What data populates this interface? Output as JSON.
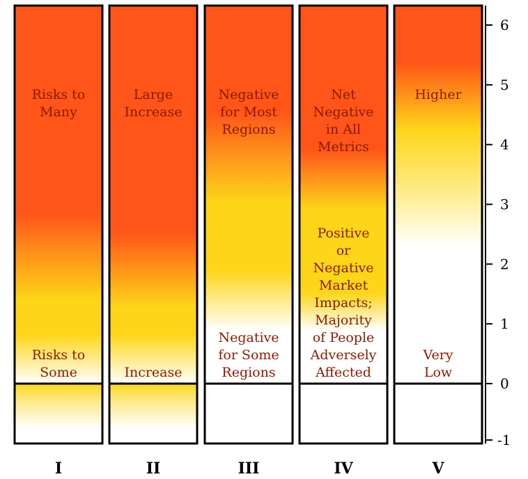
{
  "axis": {
    "min": -1,
    "max": 6,
    "ticks": [
      "6",
      "5",
      "4",
      "3",
      "2",
      "1",
      "0",
      "-1"
    ]
  },
  "columns": [
    {
      "numeral": "I",
      "top_label": [
        "Risks to",
        "Many"
      ],
      "bottom_label": [
        "Risks to",
        "Some"
      ]
    },
    {
      "numeral": "II",
      "top_label": [
        "Large",
        "Increase"
      ],
      "bottom_label": [
        "Increase"
      ]
    },
    {
      "numeral": "III",
      "top_label": [
        "Negative",
        "for Most",
        "Regions"
      ],
      "bottom_label": [
        "Negative",
        "for Some",
        "Regions"
      ]
    },
    {
      "numeral": "IV",
      "top_label": [
        "Net",
        "Negative",
        "in All",
        "Metrics"
      ],
      "bottom_label": [
        "Positive",
        "or",
        "Negative",
        "Market",
        "Impacts;",
        "Majority",
        "of People",
        "Adversely",
        "Affected"
      ]
    },
    {
      "numeral": "V",
      "top_label": [
        "Higher"
      ],
      "bottom_label": [
        "Very",
        "Low"
      ]
    }
  ],
  "colors": {
    "hot": "#ff5519",
    "warm": "#fdd619",
    "outline": "#000000",
    "label": "#8a1a00"
  }
}
